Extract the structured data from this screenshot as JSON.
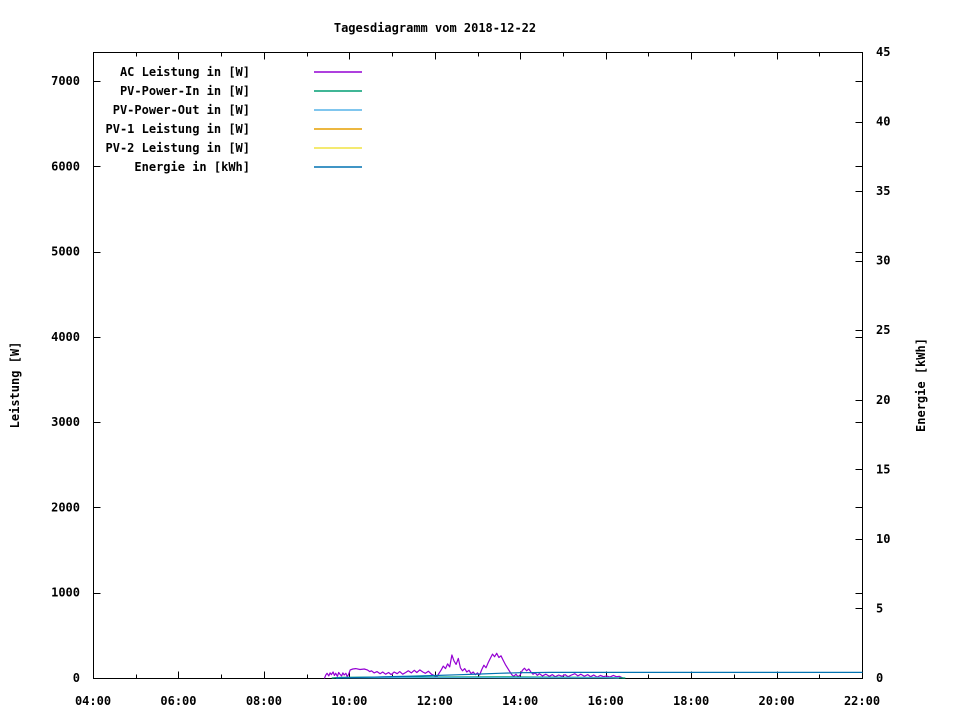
{
  "chart_data": {
    "type": "line",
    "title": "Tagesdiagramm vom 2018-12-22",
    "ylabel": "Leistung [W]",
    "y2label": "Energie [kWh]",
    "grid": false,
    "legend_position": "top-left",
    "frame_color": "#000000",
    "background_color": "#ffffff",
    "x_axis": {
      "range": [
        4,
        22
      ],
      "major_tick_step_hours": 2,
      "minor_tick_step_hours": 1,
      "tick_labels": [
        "04:00",
        "06:00",
        "08:00",
        "10:00",
        "12:00",
        "14:00",
        "16:00",
        "18:00",
        "20:00",
        "22:00"
      ],
      "tick_hours": [
        4,
        6,
        8,
        10,
        12,
        14,
        16,
        18,
        20,
        22
      ]
    },
    "y_axis": {
      "range": [
        0,
        7340
      ],
      "tick_step": 1000,
      "tick_values": [
        0,
        1000,
        2000,
        3000,
        4000,
        5000,
        6000,
        7000
      ],
      "tick_labels": [
        "0",
        "1000",
        "2000",
        "3000",
        "4000",
        "5000",
        "6000",
        "7000"
      ]
    },
    "y2_axis": {
      "range": [
        0,
        45
      ],
      "tick_step": 5,
      "tick_values": [
        0,
        5,
        10,
        15,
        20,
        25,
        30,
        35,
        40,
        45
      ],
      "tick_labels": [
        "0",
        "5",
        "10",
        "15",
        "20",
        "25",
        "30",
        "35",
        "40",
        "45"
      ]
    },
    "series": [
      {
        "name": "AC Leistung in [W]",
        "color": "#9400d3",
        "axis": "y1",
        "points": [
          [
            9.42,
            0
          ],
          [
            9.45,
            35
          ],
          [
            9.48,
            55
          ],
          [
            9.52,
            25
          ],
          [
            9.55,
            60
          ],
          [
            9.58,
            40
          ],
          [
            9.62,
            70
          ],
          [
            9.65,
            30
          ],
          [
            9.68,
            55
          ],
          [
            9.72,
            20
          ],
          [
            9.75,
            65
          ],
          [
            9.78,
            45
          ],
          [
            9.82,
            25
          ],
          [
            9.85,
            60
          ],
          [
            9.88,
            35
          ],
          [
            9.92,
            55
          ],
          [
            9.95,
            15
          ],
          [
            9.98,
            40
          ],
          [
            10.02,
            95
          ],
          [
            10.08,
            105
          ],
          [
            10.15,
            110
          ],
          [
            10.25,
            100
          ],
          [
            10.35,
            105
          ],
          [
            10.42,
            95
          ],
          [
            10.48,
            75
          ],
          [
            10.52,
            85
          ],
          [
            10.58,
            60
          ],
          [
            10.65,
            75
          ],
          [
            10.72,
            50
          ],
          [
            10.78,
            70
          ],
          [
            10.85,
            45
          ],
          [
            10.92,
            65
          ],
          [
            10.98,
            40
          ],
          [
            11.05,
            70
          ],
          [
            11.12,
            50
          ],
          [
            11.18,
            75
          ],
          [
            11.25,
            45
          ],
          [
            11.32,
            65
          ],
          [
            11.38,
            85
          ],
          [
            11.45,
            60
          ],
          [
            11.52,
            90
          ],
          [
            11.58,
            65
          ],
          [
            11.65,
            95
          ],
          [
            11.72,
            70
          ],
          [
            11.78,
            55
          ],
          [
            11.85,
            80
          ],
          [
            11.92,
            45
          ],
          [
            11.98,
            30
          ],
          [
            12.05,
            15
          ],
          [
            12.1,
            55
          ],
          [
            12.15,
            95
          ],
          [
            12.2,
            140
          ],
          [
            12.25,
            110
          ],
          [
            12.3,
            165
          ],
          [
            12.35,
            130
          ],
          [
            12.4,
            270
          ],
          [
            12.45,
            200
          ],
          [
            12.5,
            160
          ],
          [
            12.55,
            230
          ],
          [
            12.6,
            120
          ],
          [
            12.65,
            85
          ],
          [
            12.7,
            110
          ],
          [
            12.75,
            70
          ],
          [
            12.8,
            90
          ],
          [
            12.85,
            50
          ],
          [
            12.9,
            70
          ],
          [
            12.95,
            40
          ],
          [
            13.0,
            60
          ],
          [
            13.05,
            35
          ],
          [
            13.1,
            100
          ],
          [
            13.15,
            150
          ],
          [
            13.2,
            120
          ],
          [
            13.25,
            180
          ],
          [
            13.3,
            230
          ],
          [
            13.35,
            280
          ],
          [
            13.4,
            250
          ],
          [
            13.45,
            290
          ],
          [
            13.5,
            240
          ],
          [
            13.55,
            260
          ],
          [
            13.6,
            210
          ],
          [
            13.65,
            160
          ],
          [
            13.7,
            120
          ],
          [
            13.75,
            80
          ],
          [
            13.8,
            40
          ],
          [
            13.85,
            20
          ],
          [
            13.9,
            45
          ],
          [
            13.95,
            15
          ],
          [
            14.0,
            35
          ],
          [
            14.05,
            90
          ],
          [
            14.1,
            115
          ],
          [
            14.15,
            85
          ],
          [
            14.2,
            105
          ],
          [
            14.25,
            70
          ],
          [
            14.3,
            45
          ],
          [
            14.35,
            60
          ],
          [
            14.4,
            30
          ],
          [
            14.45,
            50
          ],
          [
            14.52,
            25
          ],
          [
            14.6,
            45
          ],
          [
            14.68,
            20
          ],
          [
            14.75,
            40
          ],
          [
            14.82,
            15
          ],
          [
            14.9,
            35
          ],
          [
            14.98,
            20
          ],
          [
            15.05,
            40
          ],
          [
            15.12,
            15
          ],
          [
            15.2,
            35
          ],
          [
            15.28,
            50
          ],
          [
            15.35,
            25
          ],
          [
            15.42,
            45
          ],
          [
            15.5,
            20
          ],
          [
            15.58,
            40
          ],
          [
            15.65,
            15
          ],
          [
            15.72,
            35
          ],
          [
            15.8,
            10
          ],
          [
            15.88,
            30
          ],
          [
            15.95,
            15
          ],
          [
            16.02,
            25
          ],
          [
            16.1,
            10
          ],
          [
            16.18,
            30
          ],
          [
            16.25,
            15
          ],
          [
            16.32,
            20
          ],
          [
            16.4,
            0
          ]
        ]
      },
      {
        "name": "PV-Power-In in [W]",
        "color": "#009e73",
        "axis": "y1",
        "points": [
          [
            9.6,
            0
          ],
          [
            9.8,
            8
          ],
          [
            10.5,
            10
          ],
          [
            11.5,
            10
          ],
          [
            12.5,
            12
          ],
          [
            13.5,
            14
          ],
          [
            14.5,
            10
          ],
          [
            15.5,
            8
          ],
          [
            16.2,
            5
          ],
          [
            16.45,
            0
          ]
        ]
      },
      {
        "name": "PV-Power-Out in [W]",
        "color": "#56b4e9",
        "axis": "y1",
        "points": [
          [
            9.7,
            0
          ],
          [
            10.0,
            2
          ],
          [
            13.0,
            3
          ],
          [
            16.0,
            2
          ],
          [
            16.3,
            0
          ]
        ]
      },
      {
        "name": "PV-1 Leistung in [W]",
        "color": "#e69f00",
        "axis": "y1",
        "points": []
      },
      {
        "name": "PV-2 Leistung in [W]",
        "color": "#f0e442",
        "axis": "y1",
        "points": []
      },
      {
        "name": "Energie in [kWh]",
        "color": "#0072b2",
        "axis": "y2",
        "points": [
          [
            9.7,
            0
          ],
          [
            10.0,
            0.02
          ],
          [
            10.5,
            0.06
          ],
          [
            11.0,
            0.1
          ],
          [
            11.5,
            0.14
          ],
          [
            12.0,
            0.18
          ],
          [
            12.5,
            0.23
          ],
          [
            13.0,
            0.28
          ],
          [
            13.5,
            0.34
          ],
          [
            14.0,
            0.38
          ],
          [
            14.3,
            0.39
          ],
          [
            14.7,
            0.4
          ],
          [
            15.0,
            0.4
          ],
          [
            22.0,
            0.4
          ]
        ]
      }
    ]
  }
}
